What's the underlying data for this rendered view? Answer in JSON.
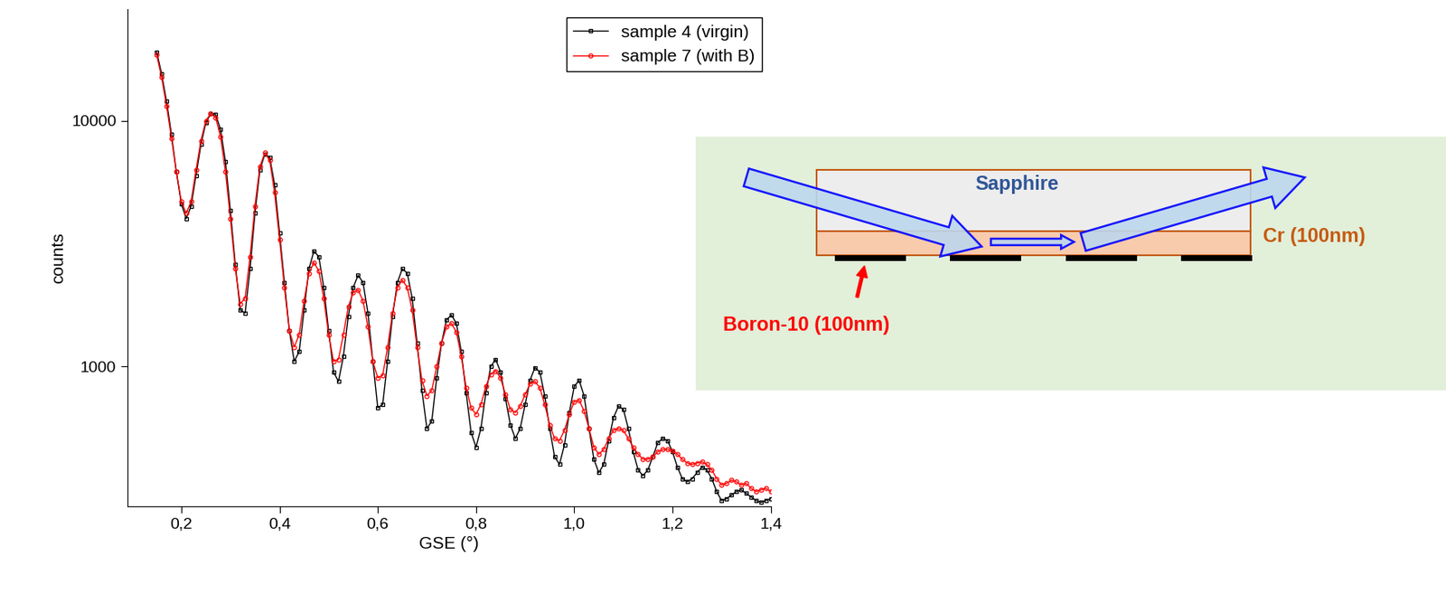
{
  "chart_data": {
    "type": "line",
    "x_label": "GSE (°)",
    "y_label": "counts",
    "log": "y",
    "legend": "upper right",
    "xlim": [
      0.09,
      1.4
    ],
    "xticks": [
      {
        "value": 0.2,
        "label": "0,2"
      },
      {
        "value": 0.4,
        "label": "0,4"
      },
      {
        "value": 0.6,
        "label": "0,6"
      },
      {
        "value": 0.8,
        "label": "0,8"
      },
      {
        "value": 1.0,
        "label": "1,0"
      },
      {
        "value": 1.2,
        "label": "1,2"
      },
      {
        "value": 1.4,
        "label": "1,4"
      }
    ],
    "ylim": [
      270,
      28500
    ],
    "yticks": [
      1000,
      10000
    ],
    "x": [
      0.15,
      0.16,
      0.17,
      0.18,
      0.19,
      0.2,
      0.21,
      0.22,
      0.23,
      0.24,
      0.25,
      0.26,
      0.27,
      0.28,
      0.29,
      0.3,
      0.31,
      0.32,
      0.33,
      0.34,
      0.35,
      0.36,
      0.37,
      0.38,
      0.39,
      0.4,
      0.41,
      0.42,
      0.43,
      0.44,
      0.45,
      0.46,
      0.47,
      0.48,
      0.49,
      0.5,
      0.51,
      0.52,
      0.53,
      0.54,
      0.55,
      0.56,
      0.57,
      0.58,
      0.59,
      0.6,
      0.61,
      0.62,
      0.63,
      0.64,
      0.65,
      0.66,
      0.67,
      0.68,
      0.69,
      0.7,
      0.71,
      0.72,
      0.73,
      0.74,
      0.75,
      0.76,
      0.77,
      0.78,
      0.79,
      0.8,
      0.81,
      0.82,
      0.83,
      0.84,
      0.85,
      0.86,
      0.87,
      0.88,
      0.89,
      0.9,
      0.91,
      0.92,
      0.93,
      0.94,
      0.95,
      0.96,
      0.97,
      0.98,
      0.99,
      1.0,
      1.01,
      1.02,
      1.03,
      1.04,
      1.05,
      1.06,
      1.07,
      1.08,
      1.09,
      1.1,
      1.11,
      1.12,
      1.13,
      1.14,
      1.15,
      1.16,
      1.17,
      1.18,
      1.19,
      1.2,
      1.21,
      1.22,
      1.23,
      1.24,
      1.25,
      1.26,
      1.27,
      1.28,
      1.29,
      1.3,
      1.31,
      1.32,
      1.33,
      1.34,
      1.35,
      1.36,
      1.37,
      1.38,
      1.39,
      1.4
    ],
    "series": [
      {
        "name": "sample 4 (virgin)",
        "color": "#000000",
        "marker": "square",
        "values": [
          19000,
          15500,
          12000,
          8800,
          6200,
          4600,
          4000,
          4500,
          6000,
          8000,
          9800,
          10700,
          10600,
          9200,
          6800,
          4300,
          2600,
          1700,
          1650,
          2500,
          4200,
          6300,
          7300,
          7100,
          5500,
          3500,
          2200,
          1400,
          1050,
          1150,
          1700,
          2500,
          2950,
          2800,
          2100,
          1400,
          950,
          870,
          1100,
          1600,
          2100,
          2350,
          2200,
          1650,
          1050,
          680,
          700,
          1050,
          1600,
          2200,
          2500,
          2400,
          1900,
          1250,
          800,
          560,
          600,
          900,
          1250,
          1550,
          1620,
          1500,
          1150,
          780,
          540,
          470,
          560,
          780,
          1000,
          1070,
          950,
          740,
          580,
          510,
          560,
          700,
          880,
          990,
          950,
          760,
          560,
          430,
          400,
          480,
          650,
          830,
          880,
          760,
          560,
          420,
          370,
          400,
          500,
          620,
          690,
          670,
          560,
          450,
          380,
          360,
          380,
          430,
          490,
          510,
          500,
          450,
          390,
          350,
          340,
          350,
          370,
          390,
          380,
          350,
          310,
          285,
          290,
          300,
          310,
          315,
          305,
          295,
          285,
          280,
          285,
          290
        ]
      },
      {
        "name": "sample 7 (with B)",
        "color": "#ff0000",
        "marker": "circle",
        "values": [
          18500,
          15000,
          11500,
          8500,
          6200,
          4700,
          4200,
          4700,
          6300,
          8300,
          10000,
          10700,
          10300,
          8600,
          6200,
          4000,
          2500,
          1800,
          1900,
          2800,
          4500,
          6500,
          7400,
          6900,
          5100,
          3300,
          2100,
          1400,
          1200,
          1350,
          1850,
          2400,
          2650,
          2450,
          1900,
          1350,
          1050,
          1070,
          1350,
          1750,
          2000,
          2050,
          1850,
          1450,
          1050,
          900,
          920,
          1200,
          1650,
          2100,
          2250,
          2100,
          1700,
          1200,
          880,
          760,
          800,
          1000,
          1250,
          1450,
          1500,
          1380,
          1100,
          820,
          680,
          640,
          700,
          830,
          930,
          960,
          900,
          770,
          670,
          650,
          690,
          770,
          850,
          870,
          820,
          700,
          580,
          510,
          500,
          550,
          640,
          720,
          730,
          660,
          560,
          470,
          440,
          460,
          510,
          550,
          560,
          550,
          510,
          470,
          440,
          420,
          420,
          430,
          450,
          460,
          460,
          455,
          440,
          420,
          405,
          400,
          405,
          410,
          400,
          380,
          350,
          330,
          335,
          345,
          340,
          330,
          335,
          320,
          310,
          315,
          320,
          310
        ]
      }
    ]
  },
  "diagram": {
    "layer_top": "Sapphire",
    "layer_bottom": "Cr (100nm)",
    "absorber": "Boron-10 (100nm)"
  }
}
